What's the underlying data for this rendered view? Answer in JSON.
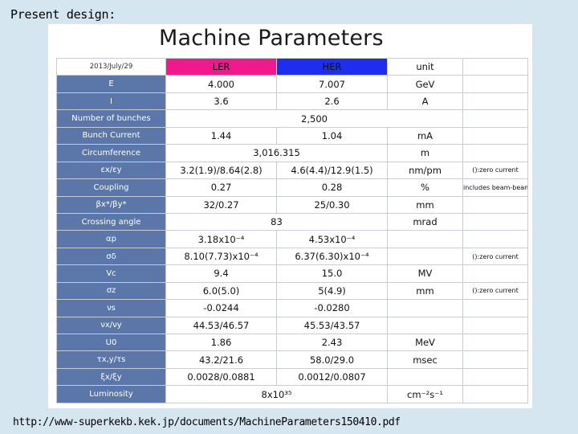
{
  "caption": "Present design:",
  "footer": "http://www-superkekb.kek.jp/documents/MachineParameters150410.pdf",
  "slide": {
    "title": "Machine Parameters",
    "date": "2013/July/29",
    "headers": {
      "ler": "LER",
      "her": "HER",
      "unit": "unit"
    },
    "rows": [
      {
        "label": "E",
        "ler": "4.000",
        "her": "7.007",
        "unit": "GeV",
        "note": ""
      },
      {
        "label": "I",
        "ler": "3.6",
        "her": "2.6",
        "unit": "A",
        "note": ""
      },
      {
        "label": "Number of bunches",
        "both": "2,500",
        "note": ""
      },
      {
        "label": "Bunch Current",
        "ler": "1.44",
        "her": "1.04",
        "unit": "mA",
        "note": ""
      },
      {
        "label": "Circumference",
        "both": "3,016.315",
        "unit": "m",
        "note": ""
      },
      {
        "label": "εx/εy",
        "ler": "3.2(1.9)/8.64(2.8)",
        "her": "4.6(4.4)/12.9(1.5)",
        "unit": "nm/pm",
        "note": "():zero current"
      },
      {
        "label": "Coupling",
        "ler": "0.27",
        "her": "0.28",
        "unit": "%",
        "note": "includes beam-beam"
      },
      {
        "label": "βx*/βy*",
        "ler": "32/0.27",
        "her": "25/0.30",
        "unit": "mm",
        "note": ""
      },
      {
        "label": "Crossing angle",
        "both": "83",
        "unit": "mrad",
        "note": ""
      },
      {
        "label": "αp",
        "ler": "3.18x10⁻⁴",
        "her": "4.53x10⁻⁴",
        "unit": "",
        "note": ""
      },
      {
        "label": "σδ",
        "ler": "8.10(7.73)x10⁻⁴",
        "her": "6.37(6.30)x10⁻⁴",
        "unit": "",
        "note": "():zero current"
      },
      {
        "label": "Vc",
        "ler": "9.4",
        "her": "15.0",
        "unit": "MV",
        "note": ""
      },
      {
        "label": "σz",
        "ler": "6.0(5.0)",
        "her": "5(4.9)",
        "unit": "mm",
        "note": "():zero current"
      },
      {
        "label": "νs",
        "ler": "-0.0244",
        "her": "-0.0280",
        "unit": "",
        "note": ""
      },
      {
        "label": "νx/νy",
        "ler": "44.53/46.57",
        "her": "45.53/43.57",
        "unit": "",
        "note": ""
      },
      {
        "label": "U0",
        "ler": "1.86",
        "her": "2.43",
        "unit": "MeV",
        "note": ""
      },
      {
        "label": "τx,y/τs",
        "ler": "43.2/21.6",
        "her": "58.0/29.0",
        "unit": "msec",
        "note": ""
      },
      {
        "label": "ξx/ξy",
        "ler": "0.0028/0.0881",
        "her": "0.0012/0.0807",
        "unit": "",
        "note": ""
      },
      {
        "label": "Luminosity",
        "both": "8x10³⁵",
        "unit": "cm⁻²s⁻¹",
        "note": ""
      }
    ]
  }
}
